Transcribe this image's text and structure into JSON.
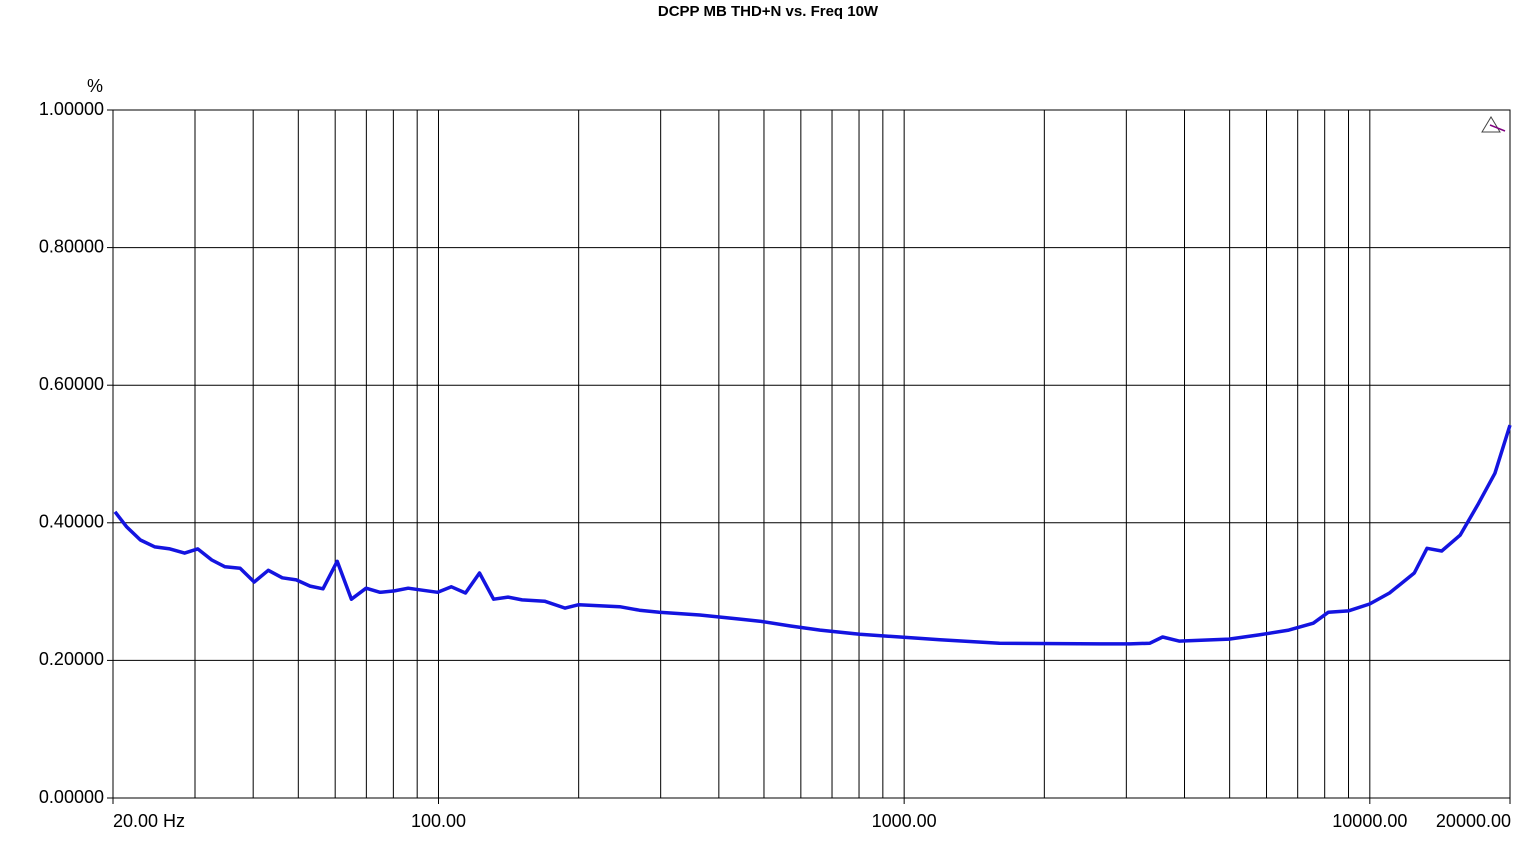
{
  "chart_data": {
    "type": "line",
    "title": "DCPP MB THD+N vs. Freq 10W",
    "y_label": "%",
    "x_scale": "log",
    "xlim": [
      20,
      20000
    ],
    "ylim": [
      0,
      1
    ],
    "xticks": [
      {
        "value": 20,
        "label": "20.00 Hz"
      },
      {
        "value": 100,
        "label": "100.00"
      },
      {
        "value": 1000,
        "label": "1000.00"
      },
      {
        "value": 10000,
        "label": "10000.00"
      },
      {
        "value": 20000,
        "label": "20000.00"
      }
    ],
    "x_minor_grid": [
      30,
      40,
      50,
      60,
      70,
      80,
      90,
      200,
      300,
      400,
      500,
      600,
      700,
      800,
      900,
      2000,
      3000,
      4000,
      5000,
      6000,
      7000,
      8000,
      9000
    ],
    "yticks": [
      {
        "value": 0,
        "label": "0.00000"
      },
      {
        "value": 0.2,
        "label": "0.20000"
      },
      {
        "value": 0.4,
        "label": "0.40000"
      },
      {
        "value": 0.6,
        "label": "0.60000"
      },
      {
        "value": 0.8,
        "label": "0.80000"
      },
      {
        "value": 1,
        "label": "1.00000"
      }
    ],
    "grid": true,
    "series": [
      {
        "color": "#1414e0",
        "x": [
          20.2,
          21.4,
          22.9,
          24.6,
          26.5,
          28.5,
          30.4,
          32.6,
          34.8,
          37.5,
          40.2,
          43.1,
          46.2,
          49.5,
          53.0,
          56.5,
          60.6,
          65.0,
          69.9,
          74.9,
          80.4,
          86.1,
          92.3,
          99.6,
          106.6,
          114.3,
          122.5,
          131.3,
          141.0,
          151.2,
          169,
          187,
          200,
          245,
          270,
          298,
          364,
          444,
          490,
          570,
          660,
          803,
          980,
          1194,
          1602,
          2632,
          3053,
          3370,
          3590,
          3895,
          4985,
          5780,
          6700,
          7560,
          8150,
          8990,
          9990,
          11020,
          12460,
          13270,
          14270,
          15630,
          17050,
          18560,
          20000
        ],
        "values": [
          0.416,
          0.394,
          0.375,
          0.365,
          0.362,
          0.356,
          0.362,
          0.346,
          0.336,
          0.334,
          0.314,
          0.331,
          0.32,
          0.317,
          0.308,
          0.304,
          0.344,
          0.289,
          0.305,
          0.299,
          0.301,
          0.305,
          0.302,
          0.299,
          0.307,
          0.298,
          0.327,
          0.289,
          0.292,
          0.288,
          0.286,
          0.276,
          0.281,
          0.278,
          0.273,
          0.27,
          0.266,
          0.26,
          0.257,
          0.25,
          0.244,
          0.238,
          0.234,
          0.23,
          0.225,
          0.224,
          0.224,
          0.225,
          0.234,
          0.228,
          0.231,
          0.237,
          0.244,
          0.254,
          0.27,
          0.272,
          0.282,
          0.298,
          0.327,
          0.363,
          0.359,
          0.382,
          0.426,
          0.472,
          0.542
        ]
      }
    ]
  }
}
